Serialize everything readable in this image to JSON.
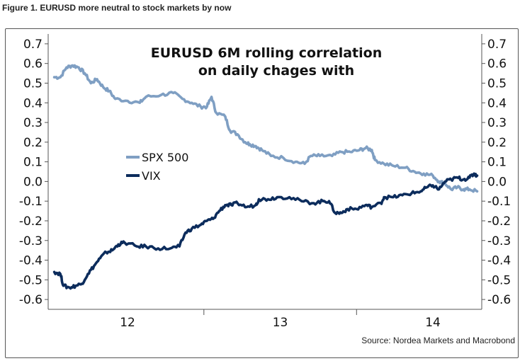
{
  "figure_caption": "Figure 1. EURUSD more neutral to stock markets by now",
  "source_note": "Source: Nordea Markets and Macrobond",
  "chart_data": {
    "type": "line",
    "title_lines": [
      "EURUSD 6M rolling correlation",
      "on daily chages with"
    ],
    "xlabel": "",
    "ylabel": "",
    "x_tick_labels": [
      "12",
      "13",
      "14"
    ],
    "x_tick_positions": [
      2012.5,
      2013.5,
      2014.5
    ],
    "xlim": [
      2011.98,
      2014.82
    ],
    "ylim": [
      -0.65,
      0.75
    ],
    "y_ticks": [
      "0.7",
      "0.6",
      "0.5",
      "0.4",
      "0.3",
      "0.2",
      "0.1",
      "0.0",
      "-0.1",
      "-0.2",
      "-0.3",
      "-0.4",
      "-0.5",
      "-0.6"
    ],
    "y_tick_values": [
      0.7,
      0.6,
      0.5,
      0.4,
      0.3,
      0.2,
      0.1,
      0.0,
      -0.1,
      -0.2,
      -0.3,
      -0.4,
      -0.5,
      -0.6
    ],
    "grid": false,
    "legend_placement": "center-left",
    "series": [
      {
        "name": "SPX 500",
        "color": "#7f9fc3",
        "points": [
          [
            2012.02,
            0.53
          ],
          [
            2012.06,
            0.53
          ],
          [
            2012.1,
            0.58
          ],
          [
            2012.14,
            0.59
          ],
          [
            2012.18,
            0.58
          ],
          [
            2012.22,
            0.55
          ],
          [
            2012.26,
            0.5
          ],
          [
            2012.3,
            0.52
          ],
          [
            2012.34,
            0.48
          ],
          [
            2012.38,
            0.46
          ],
          [
            2012.42,
            0.42
          ],
          [
            2012.5,
            0.41
          ],
          [
            2012.58,
            0.4
          ],
          [
            2012.62,
            0.43
          ],
          [
            2012.72,
            0.44
          ],
          [
            2012.8,
            0.45
          ],
          [
            2012.86,
            0.42
          ],
          [
            2012.92,
            0.4
          ],
          [
            2012.98,
            0.38
          ],
          [
            2013.02,
            0.38
          ],
          [
            2013.05,
            0.43
          ],
          [
            2013.08,
            0.35
          ],
          [
            2013.14,
            0.33
          ],
          [
            2013.17,
            0.26
          ],
          [
            2013.22,
            0.24
          ],
          [
            2013.27,
            0.2
          ],
          [
            2013.3,
            0.19
          ],
          [
            2013.34,
            0.18
          ],
          [
            2013.38,
            0.16
          ],
          [
            2013.44,
            0.13
          ],
          [
            2013.52,
            0.12
          ],
          [
            2013.6,
            0.1
          ],
          [
            2013.66,
            0.09
          ],
          [
            2013.7,
            0.13
          ],
          [
            2013.76,
            0.13
          ],
          [
            2013.84,
            0.13
          ],
          [
            2013.9,
            0.15
          ],
          [
            2013.96,
            0.15
          ],
          [
            2014.02,
            0.16
          ],
          [
            2014.06,
            0.17
          ],
          [
            2014.1,
            0.16
          ],
          [
            2014.12,
            0.11
          ],
          [
            2014.18,
            0.09
          ],
          [
            2014.24,
            0.08
          ],
          [
            2014.32,
            0.07
          ],
          [
            2014.38,
            0.05
          ],
          [
            2014.44,
            0.04
          ],
          [
            2014.5,
            0.03
          ],
          [
            2014.54,
            0.0
          ],
          [
            2014.58,
            -0.01
          ],
          [
            2014.62,
            -0.04
          ],
          [
            2014.66,
            -0.03
          ],
          [
            2014.7,
            -0.04
          ],
          [
            2014.74,
            -0.04
          ],
          [
            2014.79,
            -0.05
          ]
        ]
      },
      {
        "name": "VIX",
        "color": "#0c2c5c",
        "points": [
          [
            2012.02,
            -0.46
          ],
          [
            2012.06,
            -0.47
          ],
          [
            2012.08,
            -0.53
          ],
          [
            2012.12,
            -0.54
          ],
          [
            2012.16,
            -0.53
          ],
          [
            2012.2,
            -0.52
          ],
          [
            2012.24,
            -0.47
          ],
          [
            2012.28,
            -0.43
          ],
          [
            2012.32,
            -0.39
          ],
          [
            2012.36,
            -0.36
          ],
          [
            2012.4,
            -0.35
          ],
          [
            2012.44,
            -0.32
          ],
          [
            2012.48,
            -0.31
          ],
          [
            2012.56,
            -0.33
          ],
          [
            2012.62,
            -0.33
          ],
          [
            2012.7,
            -0.34
          ],
          [
            2012.78,
            -0.34
          ],
          [
            2012.84,
            -0.33
          ],
          [
            2012.88,
            -0.26
          ],
          [
            2012.92,
            -0.24
          ],
          [
            2012.98,
            -0.22
          ],
          [
            2013.02,
            -0.2
          ],
          [
            2013.06,
            -0.19
          ],
          [
            2013.1,
            -0.15
          ],
          [
            2013.14,
            -0.12
          ],
          [
            2013.18,
            -0.12
          ],
          [
            2013.22,
            -0.11
          ],
          [
            2013.28,
            -0.13
          ],
          [
            2013.34,
            -0.12
          ],
          [
            2013.36,
            -0.09
          ],
          [
            2013.42,
            -0.09
          ],
          [
            2013.48,
            -0.08
          ],
          [
            2013.56,
            -0.08
          ],
          [
            2013.64,
            -0.1
          ],
          [
            2013.72,
            -0.11
          ],
          [
            2013.78,
            -0.1
          ],
          [
            2013.82,
            -0.1
          ],
          [
            2013.86,
            -0.16
          ],
          [
            2013.9,
            -0.16
          ],
          [
            2013.94,
            -0.14
          ],
          [
            2014.0,
            -0.14
          ],
          [
            2014.06,
            -0.12
          ],
          [
            2014.1,
            -0.13
          ],
          [
            2014.16,
            -0.11
          ],
          [
            2014.18,
            -0.08
          ],
          [
            2014.24,
            -0.08
          ],
          [
            2014.3,
            -0.07
          ],
          [
            2014.36,
            -0.06
          ],
          [
            2014.42,
            -0.05
          ],
          [
            2014.46,
            -0.03
          ],
          [
            2014.5,
            -0.02
          ],
          [
            2014.54,
            -0.04
          ],
          [
            2014.58,
            0.0
          ],
          [
            2014.62,
            0.01
          ],
          [
            2014.66,
            0.02
          ],
          [
            2014.7,
            0.01
          ],
          [
            2014.74,
            0.02
          ],
          [
            2014.77,
            0.04
          ],
          [
            2014.79,
            0.03
          ]
        ]
      }
    ]
  }
}
